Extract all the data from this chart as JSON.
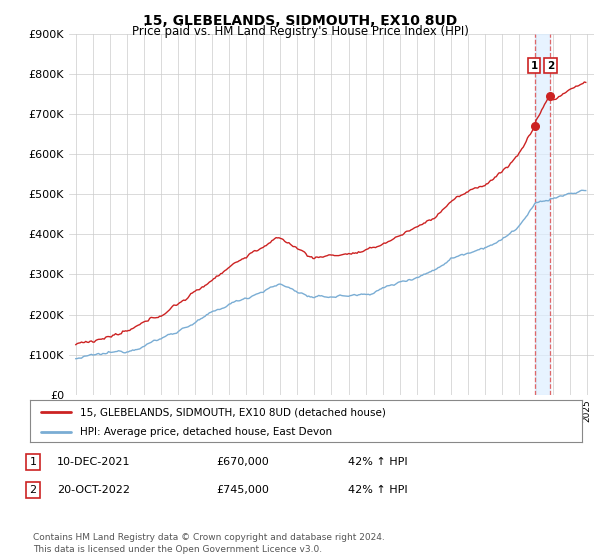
{
  "title": "15, GLEBELANDS, SIDMOUTH, EX10 8UD",
  "subtitle": "Price paid vs. HM Land Registry's House Price Index (HPI)",
  "title_fontsize": 10,
  "subtitle_fontsize": 8.5,
  "red_line_color": "#cc2222",
  "blue_line_color": "#7aadd4",
  "background_color": "#ffffff",
  "grid_color": "#cccccc",
  "ylim": [
    0,
    900000
  ],
  "yticks": [
    0,
    100000,
    200000,
    300000,
    400000,
    500000,
    600000,
    700000,
    800000,
    900000
  ],
  "ytick_labels": [
    "£0",
    "£100K",
    "£200K",
    "£300K",
    "£400K",
    "£500K",
    "£600K",
    "£700K",
    "£800K",
    "£900K"
  ],
  "sale1_date": "10-DEC-2021",
  "sale1_price": 670000,
  "sale1_year": 2021.93,
  "sale1_label": "42% ↑ HPI",
  "sale2_date": "20-OCT-2022",
  "sale2_price": 745000,
  "sale2_year": 2022.79,
  "sale2_label": "42% ↑ HPI",
  "legend_line1": "15, GLEBELANDS, SIDMOUTH, EX10 8UD (detached house)",
  "legend_line2": "HPI: Average price, detached house, East Devon",
  "footnote": "Contains HM Land Registry data © Crown copyright and database right 2024.\nThis data is licensed under the Open Government Licence v3.0.",
  "xmin": 1995,
  "xmax": 2025
}
